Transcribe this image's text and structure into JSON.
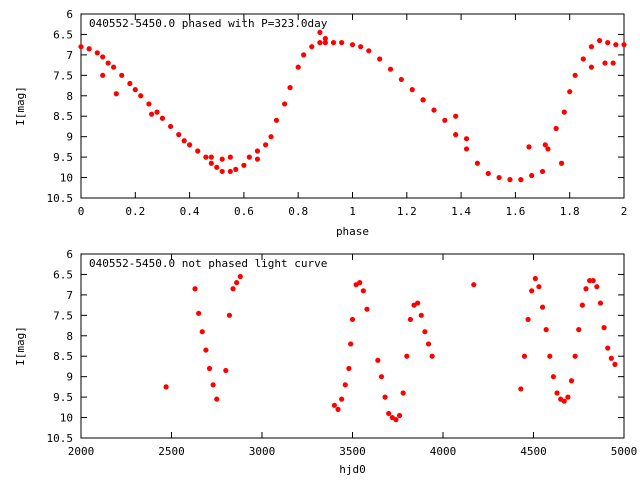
{
  "chart_data": [
    {
      "type": "scatter",
      "title": "040552-5450.0 phased with P=323.0day",
      "xlabel": "phase",
      "ylabel": "I[mag]",
      "xlim": [
        0,
        2
      ],
      "ylim": [
        6,
        10.5
      ],
      "y_reversed": true,
      "grid": false,
      "marker_color": "#ff0000",
      "xticks": [
        "0",
        "0.2",
        "0.4",
        "0.6",
        "0.8",
        "1",
        "1.2",
        "1.4",
        "1.6",
        "1.8",
        "2"
      ],
      "xtick_values": [
        0,
        0.2,
        0.4,
        0.6,
        0.8,
        1,
        1.2,
        1.4,
        1.6,
        1.8,
        2
      ],
      "yticks": [
        "6",
        "6.5",
        "7",
        "7.5",
        "8",
        "8.5",
        "9",
        "9.5",
        "10",
        "10.5"
      ],
      "ytick_values": [
        6,
        6.5,
        7,
        7.5,
        8,
        8.5,
        9,
        9.5,
        10,
        10.5
      ],
      "series": [
        {
          "x": [
            0.0,
            0.03,
            0.06,
            0.08,
            0.1,
            0.12,
            0.15,
            0.18,
            0.2,
            0.22,
            0.25,
            0.28,
            0.3,
            0.33,
            0.36,
            0.38,
            0.4,
            0.43,
            0.46,
            0.48,
            0.5,
            0.52,
            0.55,
            0.57,
            0.6,
            0.62,
            0.65,
            0.68,
            0.7,
            0.72,
            0.75,
            0.77,
            0.8,
            0.82,
            0.85,
            0.88,
            0.9,
            0.93,
            0.96,
            1.0,
            1.03,
            1.06,
            1.1,
            1.14,
            1.18,
            1.22,
            1.26,
            1.3,
            1.34,
            1.38,
            1.42,
            1.46,
            1.5,
            1.54,
            1.58,
            1.62,
            1.66,
            1.7,
            1.72,
            1.75,
            1.78,
            1.8,
            1.82,
            1.85,
            1.88,
            1.91,
            1.94,
            1.97,
            2.0,
            0.08,
            0.13,
            0.26,
            0.48,
            0.52,
            0.55,
            0.65,
            0.88,
            0.9,
            1.26,
            1.38,
            1.42,
            1.65,
            1.71,
            1.77,
            1.88,
            1.93,
            1.96
          ],
          "y": [
            6.8,
            6.85,
            6.95,
            7.05,
            7.2,
            7.3,
            7.5,
            7.7,
            7.85,
            8.0,
            8.2,
            8.4,
            8.55,
            8.75,
            8.95,
            9.1,
            9.2,
            9.35,
            9.5,
            9.65,
            9.75,
            9.85,
            9.85,
            9.8,
            9.7,
            9.5,
            9.35,
            9.2,
            9.0,
            8.6,
            8.2,
            7.8,
            7.3,
            7.0,
            6.8,
            6.7,
            6.7,
            6.7,
            6.7,
            6.75,
            6.8,
            6.9,
            7.1,
            7.35,
            7.6,
            7.85,
            8.1,
            8.35,
            8.6,
            8.95,
            9.3,
            9.65,
            9.9,
            10.0,
            10.05,
            10.05,
            9.95,
            9.85,
            9.3,
            8.8,
            8.4,
            7.9,
            7.5,
            7.1,
            6.8,
            6.65,
            6.7,
            6.75,
            6.75,
            7.5,
            7.95,
            8.45,
            9.5,
            9.55,
            9.5,
            9.55,
            6.45,
            6.6,
            8.1,
            8.5,
            9.05,
            9.25,
            9.2,
            9.65,
            7.3,
            7.2,
            7.2
          ]
        }
      ]
    },
    {
      "type": "scatter",
      "title": "040552-5450.0 not phased light curve",
      "xlabel": "hjd0",
      "ylabel": "I[mag]",
      "xlim": [
        2000,
        5000
      ],
      "ylim": [
        6,
        10.5
      ],
      "y_reversed": true,
      "grid": false,
      "marker_color": "#ff0000",
      "xticks": [
        "2000",
        "2500",
        "3000",
        "3500",
        "4000",
        "4500",
        "5000"
      ],
      "xtick_values": [
        2000,
        2500,
        3000,
        3500,
        4000,
        4500,
        5000
      ],
      "yticks": [
        "6",
        "6.5",
        "7",
        "7.5",
        "8",
        "8.5",
        "9",
        "9.5",
        "10",
        "10.5"
      ],
      "ytick_values": [
        6,
        6.5,
        7,
        7.5,
        8,
        8.5,
        9,
        9.5,
        10,
        10.5
      ],
      "series": [
        {
          "x": [
            2470,
            2630,
            2650,
            2670,
            2690,
            2710,
            2730,
            2750,
            2800,
            2820,
            2840,
            2860,
            2880,
            3400,
            3420,
            3440,
            3460,
            3480,
            3490,
            3500,
            3520,
            3540,
            3560,
            3580,
            3640,
            3660,
            3680,
            3700,
            3720,
            3740,
            3760,
            3780,
            3800,
            3820,
            3840,
            3860,
            3880,
            3900,
            3920,
            3940,
            4170,
            4430,
            4450,
            4470,
            4490,
            4510,
            4530,
            4550,
            4570,
            4590,
            4610,
            4630,
            4650,
            4670,
            4690,
            4710,
            4730,
            4750,
            4770,
            4790,
            4810,
            4830,
            4850,
            4870,
            4890,
            4910,
            4930,
            4950
          ],
          "y": [
            9.25,
            6.85,
            7.45,
            7.9,
            8.35,
            8.8,
            9.2,
            9.55,
            8.85,
            7.5,
            6.85,
            6.7,
            6.55,
            9.7,
            9.8,
            9.55,
            9.2,
            8.8,
            8.2,
            7.6,
            6.75,
            6.7,
            6.9,
            7.35,
            8.6,
            9.0,
            9.5,
            9.9,
            10.0,
            10.05,
            9.95,
            9.4,
            8.5,
            7.6,
            7.25,
            7.2,
            7.5,
            7.9,
            8.2,
            8.5,
            6.75,
            9.3,
            8.5,
            7.6,
            6.9,
            6.6,
            6.8,
            7.3,
            7.85,
            8.5,
            9.0,
            9.4,
            9.55,
            9.6,
            9.5,
            9.1,
            8.5,
            7.85,
            7.25,
            6.85,
            6.65,
            6.65,
            6.8,
            7.2,
            7.8,
            8.3,
            8.55,
            8.7
          ]
        }
      ]
    }
  ]
}
